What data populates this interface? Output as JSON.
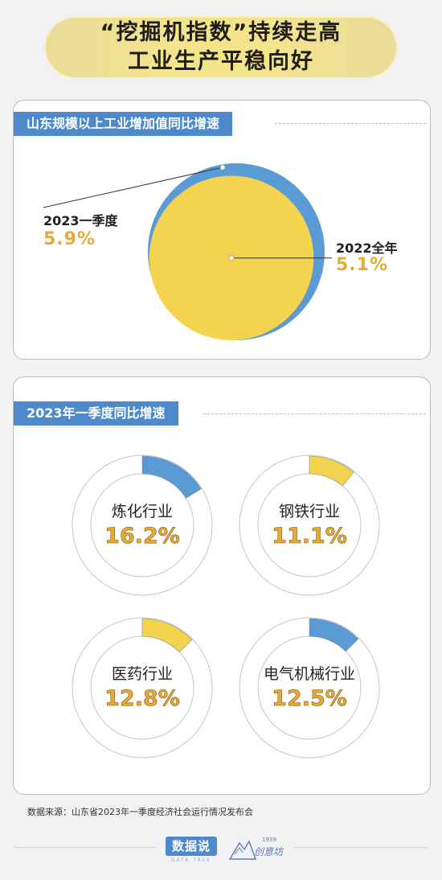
{
  "title": {
    "line1": "“挖掘机指数”持续走高",
    "line2": "工业生产平稳向好"
  },
  "section1": {
    "heading": "山东规模以上工业增加值同比增速"
  },
  "section2": {
    "heading": "2023年一季度同比增速"
  },
  "chart_data": [
    {
      "type": "area",
      "series": [
        {
          "name": "2023一季度",
          "value": 5.9,
          "display": "5.9%",
          "color": "#5b9bd5"
        },
        {
          "name": "2022全年",
          "value": 5.1,
          "display": "5.1%",
          "color": "#f4d34f"
        }
      ]
    },
    {
      "type": "pie",
      "items": [
        {
          "name": "炼化行业",
          "value": 16.2,
          "display": "16.2%",
          "color": "#5b9bd5"
        },
        {
          "name": "钢铁行业",
          "value": 11.1,
          "display": "11.1%",
          "color": "#f4d34f"
        },
        {
          "name": "医药行业",
          "value": 12.8,
          "display": "12.8%",
          "color": "#f4d34f"
        },
        {
          "name": "电气机械行业",
          "value": 12.5,
          "display": "12.5%",
          "color": "#5b9bd5"
        }
      ]
    }
  ],
  "source": "数据来源：山东省2023年一季度经济社会运行情况发布会",
  "logo": {
    "name": "数据说",
    "sub": "DATA TALK",
    "partner": "创意坊",
    "partner_year": "1939"
  },
  "colors": {
    "blue": "#5b9bd5",
    "yellow": "#f4d34f",
    "value_gold": "#e7aa36",
    "section_bar": "#4e8ac9"
  }
}
